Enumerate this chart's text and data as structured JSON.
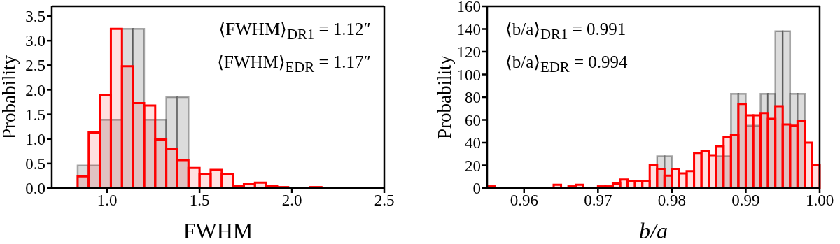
{
  "chart_data": [
    {
      "type": "histogram",
      "xlabel": "FWHM",
      "ylabel": "Probability",
      "xlim": [
        0.7,
        2.5
      ],
      "ylim": [
        0,
        3.7
      ],
      "xticks": [
        {
          "value": 1,
          "label": "1.0"
        },
        {
          "value": 1.5,
          "label": "1.5"
        },
        {
          "value": 2,
          "label": "2.0"
        },
        {
          "value": 2.5,
          "label": "2.5"
        }
      ],
      "yticks": [
        {
          "value": 0,
          "label": "0.0"
        },
        {
          "value": 0.5,
          "label": "0.5"
        },
        {
          "value": 1,
          "label": "1.0"
        },
        {
          "value": 1.5,
          "label": "1.5"
        },
        {
          "value": 2,
          "label": "2.0"
        },
        {
          "value": 2.5,
          "label": "2.5"
        },
        {
          "value": 3,
          "label": "3.0"
        },
        {
          "value": 3.5,
          "label": "3.5"
        }
      ],
      "annotations": [
        "⟨FWHM⟩$_{DR1}$ = 1.12″",
        "⟨FWHM⟩$_{EDR}$ = 1.17″"
      ],
      "bins": [
        0.84,
        0.9,
        0.96,
        1.02,
        1.08,
        1.14,
        1.2,
        1.26,
        1.32,
        1.38,
        1.44,
        1.5,
        1.56,
        1.62,
        1.68,
        1.74,
        1.8,
        1.86,
        1.92,
        1.98,
        2.04,
        2.1,
        2.16
      ],
      "series": [
        {
          "color": "#ff0000",
          "values": [
            0.24,
            1.13,
            1.89,
            3.24,
            2.48,
            1.73,
            1.68,
            0.99,
            0.8,
            0.57,
            0.41,
            0.29,
            0.37,
            0.29,
            0.05,
            0.08,
            0.11,
            0.05,
            0.02,
            0,
            0,
            0.02
          ]
        },
        {
          "color": "#d3d3d3",
          "values": [
            0.46,
            0.46,
            1.39,
            1.39,
            3.24,
            3.24,
            1.39,
            1.39,
            1.85,
            1.85,
            null,
            null,
            null,
            null,
            null,
            null,
            null,
            null,
            null,
            null,
            null,
            null
          ]
        }
      ]
    },
    {
      "type": "histogram",
      "xlabel": "b/a",
      "ylabel": "Probability",
      "xlim": [
        0.955,
        1.0
      ],
      "ylim": [
        0,
        160
      ],
      "xticks": [
        0.96,
        0.97,
        0.98,
        0.99,
        {
          "value": 1,
          "label": "1.00"
        }
      ],
      "yticks": [
        0,
        20,
        40,
        60,
        80,
        100,
        120,
        140,
        160
      ],
      "annotations": [
        "⟨b/a⟩$_{DR1}$ = 0.991",
        "⟨b/a⟩$_{EDR}$ = 0.994"
      ],
      "bins": [
        0.955,
        0.956,
        0.957,
        0.958,
        0.959,
        0.96,
        0.961,
        0.962,
        0.963,
        0.964,
        0.965,
        0.966,
        0.967,
        0.968,
        0.969,
        0.97,
        0.971,
        0.972,
        0.973,
        0.974,
        0.975,
        0.976,
        0.977,
        0.978,
        0.979,
        0.98,
        0.981,
        0.982,
        0.983,
        0.984,
        0.985,
        0.986,
        0.987,
        0.988,
        0.989,
        0.99,
        0.991,
        0.992,
        0.993,
        0.994,
        0.995,
        0.996,
        0.997,
        0.998,
        0.999,
        1.0
      ],
      "series": [
        {
          "color": "#ff0000",
          "values": [
            1.5,
            0,
            0,
            0,
            0,
            0,
            0,
            0,
            0,
            3,
            0,
            1.5,
            3,
            0,
            0,
            1.5,
            1.5,
            4,
            7.5,
            6,
            6,
            6,
            20,
            17,
            11,
            17,
            13,
            15,
            31,
            33,
            29,
            37,
            45,
            47,
            74,
            64,
            64,
            66,
            61,
            72,
            56,
            55,
            59,
            40,
            20
          ]
        },
        {
          "color": "#d3d3d3",
          "values": [
            null,
            null,
            null,
            null,
            null,
            null,
            null,
            null,
            null,
            null,
            null,
            null,
            null,
            null,
            null,
            null,
            null,
            null,
            null,
            null,
            null,
            null,
            null,
            28,
            28,
            0,
            0,
            0,
            0,
            0,
            0,
            28,
            28,
            83,
            83,
            55,
            55,
            83,
            83,
            138,
            138,
            83,
            83,
            null,
            null
          ]
        }
      ]
    }
  ]
}
